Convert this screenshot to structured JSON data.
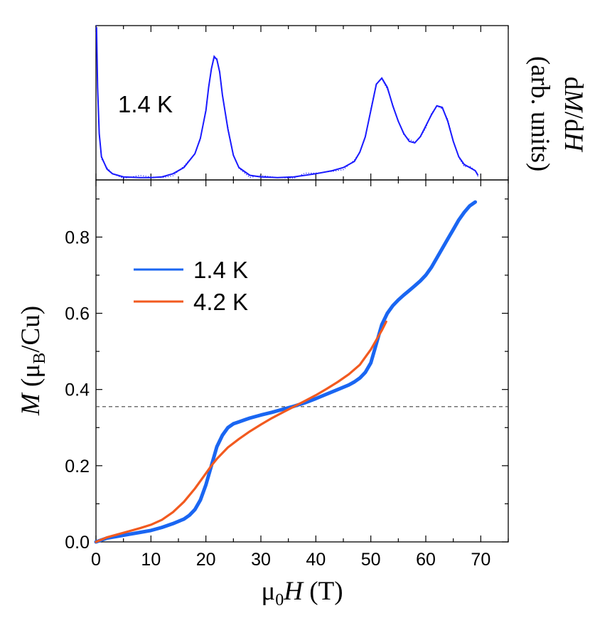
{
  "chart_data": [
    {
      "type": "scatter",
      "panel": "top",
      "ylabel_parts": [
        "d",
        "M",
        "/d",
        "H"
      ],
      "ylabel_sub": "(arb. units)",
      "annotation": "1.4 K",
      "xlim": [
        0,
        75
      ],
      "ylim": [
        0,
        1
      ],
      "y_ticks_shown": false,
      "series": [
        {
          "color": "#1a1aff",
          "x": [
            0.1,
            0.3,
            0.6,
            1.0,
            2.0,
            3.0,
            5.0,
            8.0,
            10.0,
            12.0,
            14.0,
            16.0,
            18.0,
            19.0,
            20.0,
            20.5,
            21.0,
            21.5,
            22.0,
            22.5,
            23.0,
            24.0,
            25.0,
            26.0,
            28.0,
            30.0,
            33.0,
            36.0,
            38.0,
            40.0,
            43.0,
            45.0,
            47.0,
            48.0,
            49.0,
            50.0,
            51.0,
            52.0,
            53.0,
            54.0,
            55.0,
            56.0,
            57.0,
            58.0,
            59.0,
            60.0,
            61.0,
            62.0,
            63.0,
            64.0,
            65.0,
            66.0,
            67.0,
            68.0,
            69.0,
            69.5
          ],
          "y": [
            0.99,
            0.6,
            0.3,
            0.15,
            0.07,
            0.04,
            0.02,
            0.015,
            0.015,
            0.02,
            0.04,
            0.08,
            0.17,
            0.27,
            0.45,
            0.6,
            0.72,
            0.8,
            0.78,
            0.7,
            0.55,
            0.33,
            0.16,
            0.08,
            0.03,
            0.02,
            0.015,
            0.02,
            0.03,
            0.04,
            0.06,
            0.08,
            0.12,
            0.18,
            0.28,
            0.45,
            0.62,
            0.66,
            0.6,
            0.48,
            0.38,
            0.3,
            0.25,
            0.24,
            0.28,
            0.35,
            0.42,
            0.48,
            0.47,
            0.38,
            0.25,
            0.15,
            0.1,
            0.08,
            0.06,
            0.03
          ]
        }
      ]
    },
    {
      "type": "line",
      "panel": "bottom",
      "xlabel_parts": [
        "μ",
        "0",
        "H",
        " (T)"
      ],
      "ylabel_parts": [
        "M",
        " (μ",
        "B",
        "/Cu)"
      ],
      "xlim": [
        0,
        75
      ],
      "ylim": [
        0,
        0.95
      ],
      "x_ticks": [
        "0",
        "10",
        "20",
        "30",
        "40",
        "50",
        "60",
        "70"
      ],
      "y_ticks": [
        "0.0",
        "0.2",
        "0.4",
        "0.6",
        "0.8"
      ],
      "reference_line_y": 0.355,
      "legend_position": "upper-left",
      "series": [
        {
          "name": "1.4 K",
          "color": "#1a66f2",
          "x": [
            0,
            2,
            4,
            6,
            8,
            10,
            12,
            14,
            16,
            17,
            18,
            19,
            20,
            21,
            22,
            23,
            24,
            25,
            26,
            27,
            28,
            30,
            32,
            34,
            36,
            38,
            40,
            42,
            44,
            46,
            47,
            48,
            49,
            50,
            51,
            52,
            53,
            54,
            55,
            56,
            57,
            58,
            59,
            60,
            61,
            62,
            63,
            64,
            65,
            66,
            67,
            68,
            69
          ],
          "y": [
            0,
            0.01,
            0.015,
            0.02,
            0.025,
            0.03,
            0.038,
            0.048,
            0.06,
            0.07,
            0.085,
            0.11,
            0.15,
            0.2,
            0.25,
            0.28,
            0.3,
            0.31,
            0.315,
            0.32,
            0.325,
            0.333,
            0.34,
            0.348,
            0.356,
            0.365,
            0.376,
            0.388,
            0.4,
            0.412,
            0.42,
            0.43,
            0.445,
            0.47,
            0.52,
            0.57,
            0.6,
            0.62,
            0.635,
            0.648,
            0.66,
            0.672,
            0.685,
            0.7,
            0.72,
            0.745,
            0.77,
            0.795,
            0.82,
            0.845,
            0.865,
            0.882,
            0.892
          ]
        },
        {
          "name": "4.2 K",
          "color": "#f25a1f",
          "x": [
            0,
            2,
            4,
            6,
            8,
            10,
            12,
            14,
            16,
            18,
            20,
            21,
            22,
            24,
            26,
            28,
            30,
            32,
            34,
            36,
            38,
            40,
            42,
            44,
            46,
            48,
            50,
            51,
            52,
            52.8
          ],
          "y": [
            0,
            0.012,
            0.02,
            0.028,
            0.036,
            0.045,
            0.058,
            0.078,
            0.105,
            0.14,
            0.18,
            0.2,
            0.218,
            0.248,
            0.27,
            0.29,
            0.308,
            0.325,
            0.34,
            0.355,
            0.37,
            0.385,
            0.402,
            0.42,
            0.44,
            0.465,
            0.505,
            0.53,
            0.555,
            0.578
          ]
        }
      ]
    }
  ]
}
